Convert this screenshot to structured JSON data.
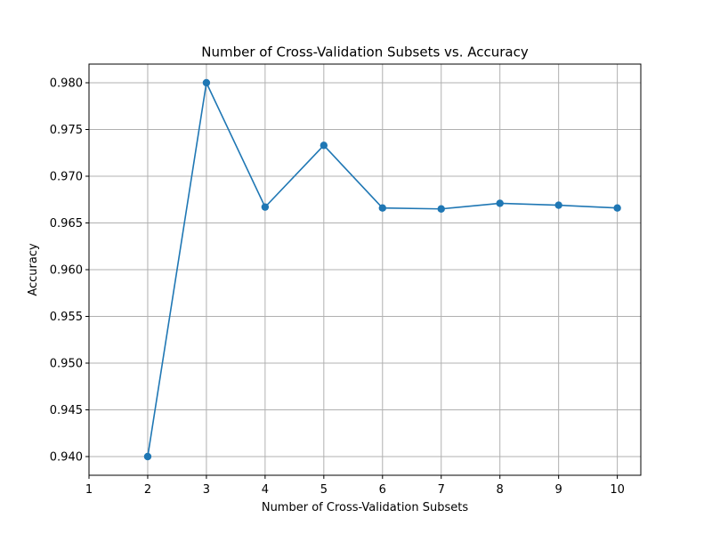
{
  "chart_data": {
    "type": "line",
    "title": "Number of Cross-Validation Subsets vs. Accuracy",
    "xlabel": "Number of Cross-Validation Subsets",
    "ylabel": "Accuracy",
    "xlim": [
      1,
      10.4
    ],
    "ylim": [
      0.938,
      0.982
    ],
    "xticks": [
      1,
      2,
      3,
      4,
      5,
      6,
      7,
      8,
      9,
      10
    ],
    "xtick_labels": [
      "1",
      "2",
      "3",
      "4",
      "5",
      "6",
      "7",
      "8",
      "9",
      "10"
    ],
    "yticks": [
      0.94,
      0.945,
      0.95,
      0.955,
      0.96,
      0.965,
      0.97,
      0.975,
      0.98
    ],
    "ytick_labels": [
      "0.940",
      "0.945",
      "0.950",
      "0.955",
      "0.960",
      "0.965",
      "0.970",
      "0.975",
      "0.980"
    ],
    "grid": true,
    "color": "#1f77b4",
    "series": [
      {
        "x": [
          2,
          3,
          4,
          5,
          6,
          7,
          8,
          9,
          10
        ],
        "values": [
          0.94,
          0.98,
          0.9667,
          0.9733,
          0.9666,
          0.9665,
          0.9671,
          0.9669,
          0.9666
        ]
      }
    ]
  }
}
